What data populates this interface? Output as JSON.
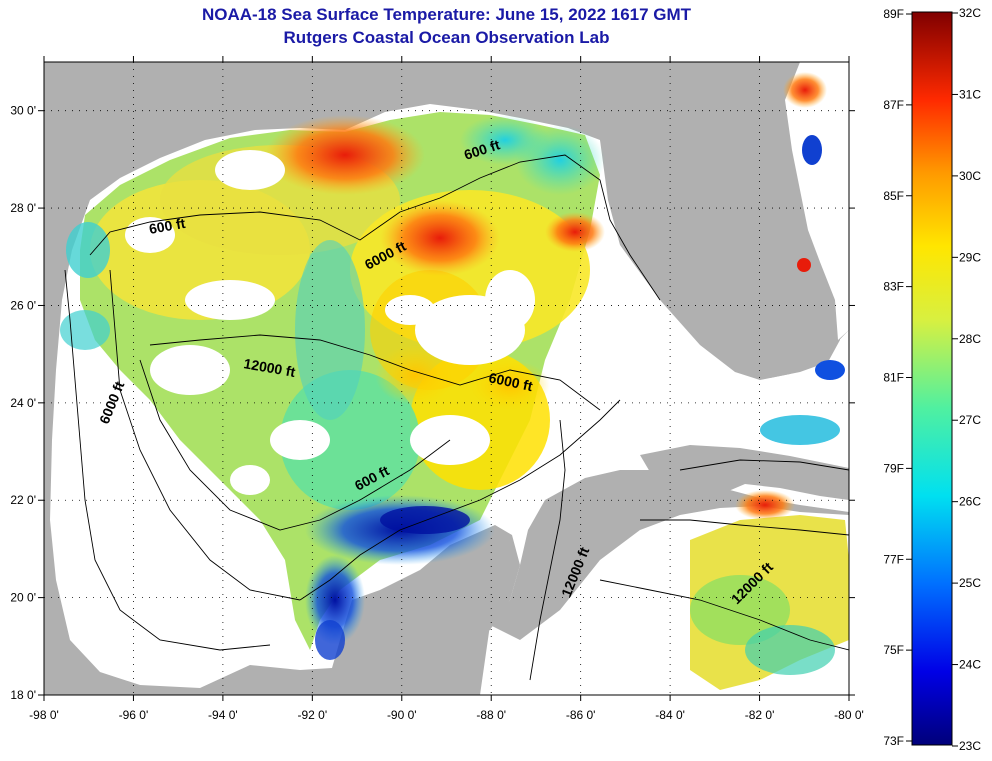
{
  "title": {
    "line1": "NOAA-18 Sea Surface Temperature:  June 15, 2022 1617 GMT",
    "line2": "Rutgers Coastal Ocean Observation Lab"
  },
  "colors": {
    "title": "#1a1aa6",
    "land": "#b0b0b0",
    "cloud": "#ffffff",
    "frame": "#000000"
  },
  "axes": {
    "lon_ticks": [
      {
        "value": -98,
        "label": "-98 0'"
      },
      {
        "value": -96,
        "label": "-96 0'"
      },
      {
        "value": -94,
        "label": "-94 0'"
      },
      {
        "value": -92,
        "label": "-92 0'"
      },
      {
        "value": -90,
        "label": "-90 0'"
      },
      {
        "value": -88,
        "label": "-88 0'"
      },
      {
        "value": -86,
        "label": "-86 0'"
      },
      {
        "value": -84,
        "label": "-84 0'"
      },
      {
        "value": -82,
        "label": "-82 0'"
      },
      {
        "value": -80,
        "label": "-80 0'"
      }
    ],
    "lat_ticks": [
      {
        "value": 18,
        "label": "18 0'"
      },
      {
        "value": 20,
        "label": "20 0'"
      },
      {
        "value": 22,
        "label": "22 0'"
      },
      {
        "value": 24,
        "label": "24 0'"
      },
      {
        "value": 26,
        "label": "26 0'"
      },
      {
        "value": 28,
        "label": "28 0'"
      },
      {
        "value": 30,
        "label": "30 0'"
      }
    ]
  },
  "contour_labels": [
    "600 ft",
    "600 ft",
    "600 ft",
    "6000 ft",
    "6000 ft",
    "6000 ft",
    "12000 ft",
    "12000 ft",
    "12000 ft"
  ],
  "legend": {
    "fahrenheit": [
      "89F",
      "87F",
      "85F",
      "83F",
      "81F",
      "79F",
      "77F",
      "75F",
      "73F"
    ],
    "celsius": [
      "32C",
      "31C",
      "30C",
      "29C",
      "28C",
      "27C",
      "26C",
      "25C",
      "24C",
      "23C"
    ]
  }
}
